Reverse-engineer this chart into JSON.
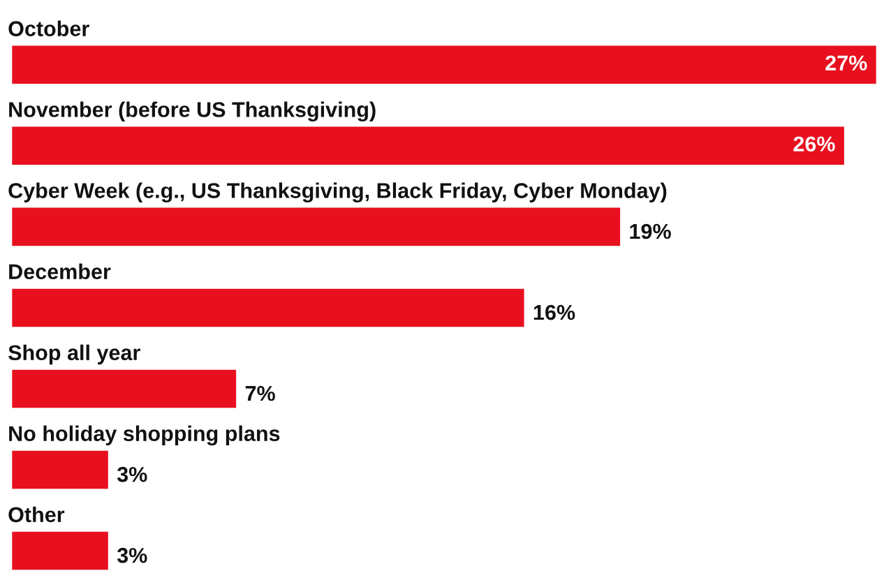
{
  "chart_data": {
    "type": "bar",
    "orientation": "horizontal",
    "categories": [
      "October",
      "November (before US Thanksgiving)",
      "Cyber Week (e.g., US Thanksgiving, Black Friday, Cyber Monday)",
      "December",
      "Shop all year",
      "No holiday shopping plans",
      "Other"
    ],
    "values": [
      27,
      26,
      19,
      16,
      7,
      3,
      3
    ],
    "value_labels": [
      "27%",
      "26%",
      "19%",
      "16%",
      "7%",
      "3%",
      "3%"
    ],
    "color": "#e8101f"
  }
}
